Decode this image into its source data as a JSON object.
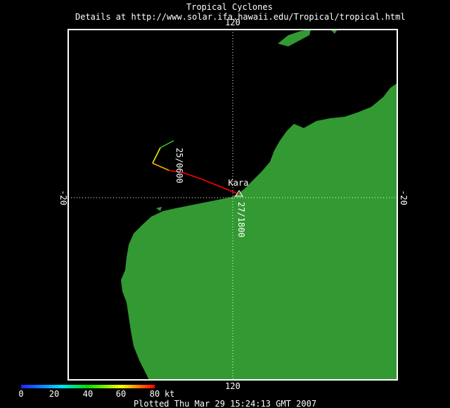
{
  "header": {
    "title": "Tropical Cyclones",
    "subtitle": "Details at http://www.solar.ifa.hawaii.edu/Tropical/tropical.html"
  },
  "grid": {
    "longitude_label": "120",
    "latitude_label": "-20"
  },
  "storm": {
    "name": "Kara",
    "time_labels": [
      "25/0600",
      "27/1800"
    ]
  },
  "legend": {
    "ticks": [
      "0",
      "20",
      "40",
      "60",
      "80"
    ],
    "unit": "kt"
  },
  "footer": "Plotted Thu Mar 29 15:24:13 GMT 2007"
}
